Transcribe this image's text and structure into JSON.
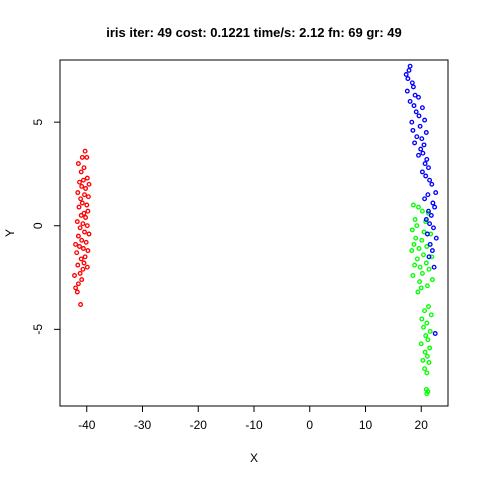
{
  "chart_data": {
    "type": "scatter",
    "title": "iris iter: 49 cost: 0.1221 time/s: 2.12 fn: 69 gr: 49",
    "xlabel": "X",
    "ylabel": "Y",
    "xlim": [
      -44.8,
      24.8
    ],
    "ylim": [
      -8.7,
      8.0
    ],
    "xticks": [
      -40,
      -30,
      -20,
      -10,
      0,
      10,
      20
    ],
    "yticks": [
      -5,
      0,
      5
    ],
    "grid": false,
    "legend": "none",
    "series": [
      {
        "color": "#ff0000",
        "points": [
          [
            -40.3,
            3.6
          ],
          [
            -40.8,
            3.3
          ],
          [
            -40.0,
            3.3
          ],
          [
            -41.5,
            3.0
          ],
          [
            -40.5,
            2.8
          ],
          [
            -41.0,
            2.6
          ],
          [
            -39.9,
            2.3
          ],
          [
            -40.6,
            2.2
          ],
          [
            -41.3,
            2.1
          ],
          [
            -39.6,
            2.0
          ],
          [
            -40.9,
            1.9
          ],
          [
            -40.2,
            1.8
          ],
          [
            -41.6,
            1.6
          ],
          [
            -40.4,
            1.5
          ],
          [
            -39.7,
            1.4
          ],
          [
            -41.1,
            1.3
          ],
          [
            -40.8,
            1.1
          ],
          [
            -40.0,
            1.0
          ],
          [
            -41.4,
            0.9
          ],
          [
            -39.8,
            0.7
          ],
          [
            -40.5,
            0.6
          ],
          [
            -41.0,
            0.5
          ],
          [
            -40.2,
            0.4
          ],
          [
            -41.7,
            0.2
          ],
          [
            -40.7,
            0.1
          ],
          [
            -39.9,
            0.0
          ],
          [
            -41.2,
            -0.1
          ],
          [
            -40.4,
            -0.3
          ],
          [
            -39.6,
            -0.4
          ],
          [
            -41.5,
            -0.5
          ],
          [
            -40.9,
            -0.7
          ],
          [
            -40.1,
            -0.8
          ],
          [
            -42.0,
            -0.9
          ],
          [
            -41.3,
            -1.0
          ],
          [
            -40.6,
            -1.1
          ],
          [
            -39.8,
            -1.2
          ],
          [
            -41.8,
            -1.3
          ],
          [
            -40.3,
            -1.5
          ],
          [
            -41.0,
            -1.6
          ],
          [
            -40.5,
            -1.8
          ],
          [
            -41.6,
            -1.9
          ],
          [
            -39.9,
            -2.0
          ],
          [
            -40.7,
            -2.1
          ],
          [
            -41.2,
            -2.3
          ],
          [
            -42.2,
            -2.4
          ],
          [
            -40.9,
            -2.6
          ],
          [
            -41.5,
            -2.8
          ],
          [
            -42.0,
            -3.0
          ],
          [
            -41.7,
            -3.2
          ],
          [
            -41.1,
            -3.8
          ]
        ]
      },
      {
        "color": "#00ff00",
        "points": [
          [
            18.6,
            1.0
          ],
          [
            19.5,
            0.9
          ],
          [
            20.2,
            0.7
          ],
          [
            21.3,
            0.6
          ],
          [
            18.9,
            0.3
          ],
          [
            20.8,
            0.2
          ],
          [
            19.2,
            0.0
          ],
          [
            18.4,
            -0.2
          ],
          [
            20.5,
            -0.3
          ],
          [
            21.7,
            -0.4
          ],
          [
            19.0,
            -0.6
          ],
          [
            20.1,
            -0.7
          ],
          [
            18.7,
            -0.9
          ],
          [
            21.0,
            -1.0
          ],
          [
            19.6,
            -1.1
          ],
          [
            18.3,
            -1.2
          ],
          [
            20.4,
            -1.4
          ],
          [
            21.9,
            -1.5
          ],
          [
            19.3,
            -1.6
          ],
          [
            20.9,
            -1.8
          ],
          [
            18.8,
            -1.9
          ],
          [
            19.8,
            -2.0
          ],
          [
            21.4,
            -2.1
          ],
          [
            20.2,
            -2.3
          ],
          [
            18.5,
            -2.4
          ],
          [
            22.0,
            -2.6
          ],
          [
            19.7,
            -2.7
          ],
          [
            21.1,
            -2.9
          ],
          [
            20.0,
            -3.0
          ],
          [
            19.4,
            -3.2
          ],
          [
            21.3,
            -3.9
          ],
          [
            20.6,
            -4.1
          ],
          [
            21.8,
            -4.3
          ],
          [
            20.1,
            -4.5
          ],
          [
            21.0,
            -4.7
          ],
          [
            20.4,
            -4.9
          ],
          [
            21.6,
            -5.1
          ],
          [
            20.8,
            -5.3
          ],
          [
            21.2,
            -5.5
          ],
          [
            20.0,
            -5.7
          ],
          [
            21.5,
            -5.9
          ],
          [
            20.7,
            -6.1
          ],
          [
            21.1,
            -6.3
          ],
          [
            20.3,
            -6.5
          ],
          [
            21.4,
            -6.6
          ],
          [
            20.6,
            -6.9
          ],
          [
            21.0,
            -7.1
          ],
          [
            20.9,
            -7.9
          ],
          [
            21.2,
            -8.0
          ],
          [
            21.0,
            -8.1
          ]
        ]
      },
      {
        "color": "#0000ff",
        "points": [
          [
            18.0,
            7.7
          ],
          [
            17.8,
            7.5
          ],
          [
            17.3,
            7.3
          ],
          [
            17.6,
            7.1
          ],
          [
            18.4,
            6.9
          ],
          [
            18.6,
            6.7
          ],
          [
            17.5,
            6.5
          ],
          [
            18.9,
            6.3
          ],
          [
            19.5,
            6.2
          ],
          [
            18.0,
            6.0
          ],
          [
            18.7,
            5.8
          ],
          [
            20.2,
            5.7
          ],
          [
            19.1,
            5.5
          ],
          [
            19.6,
            5.3
          ],
          [
            20.6,
            5.1
          ],
          [
            18.3,
            5.0
          ],
          [
            19.8,
            4.8
          ],
          [
            18.5,
            4.6
          ],
          [
            20.9,
            4.5
          ],
          [
            19.2,
            4.3
          ],
          [
            20.1,
            4.2
          ],
          [
            18.8,
            4.0
          ],
          [
            20.5,
            3.9
          ],
          [
            19.9,
            3.7
          ],
          [
            20.3,
            3.5
          ],
          [
            19.5,
            3.4
          ],
          [
            21.0,
            3.2
          ],
          [
            20.7,
            3.0
          ],
          [
            21.3,
            2.8
          ],
          [
            20.2,
            2.6
          ],
          [
            20.8,
            2.4
          ],
          [
            21.5,
            2.2
          ],
          [
            21.9,
            2.0
          ],
          [
            22.6,
            1.6
          ],
          [
            21.2,
            1.5
          ],
          [
            20.6,
            1.3
          ],
          [
            22.1,
            1.1
          ],
          [
            22.4,
            0.9
          ],
          [
            21.3,
            0.7
          ],
          [
            21.8,
            0.5
          ],
          [
            20.9,
            0.3
          ],
          [
            21.5,
            0.1
          ],
          [
            22.2,
            -0.1
          ],
          [
            21.1,
            -0.4
          ],
          [
            22.7,
            -0.6
          ],
          [
            21.6,
            -0.9
          ],
          [
            22.0,
            -1.2
          ],
          [
            21.4,
            -1.5
          ],
          [
            22.3,
            -2.0
          ],
          [
            22.5,
            -5.2
          ]
        ]
      }
    ]
  }
}
